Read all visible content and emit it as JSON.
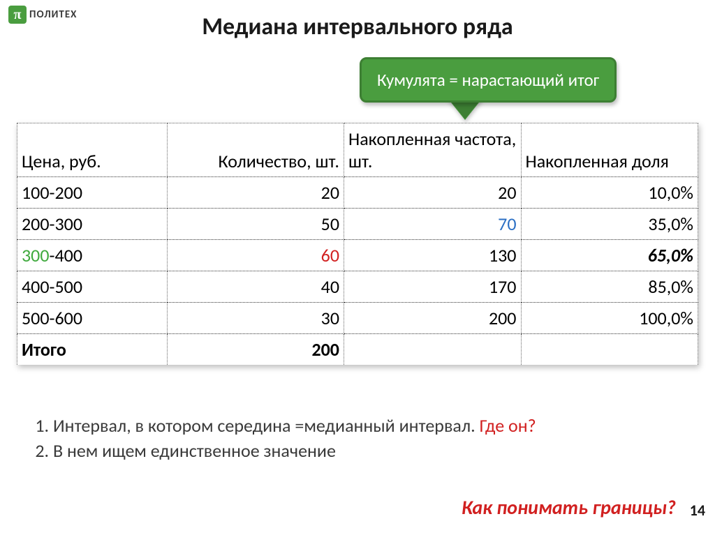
{
  "logo": {
    "icon": "π",
    "text": "ПОЛИТЕХ"
  },
  "title": "Медиана интервального ряда",
  "callout": "Кумулята = нарастающий итог",
  "table": {
    "columns": [
      "Цена, руб.",
      "Количество, шт.",
      "Накопленная частота, шт.",
      "Накопленная доля"
    ],
    "rows": [
      {
        "c1": "100-200",
        "c2": "20",
        "c3": "20",
        "c4": "10,0%"
      },
      {
        "c1": "200-300",
        "c2": "50",
        "c3": "70",
        "c4": "35,0%",
        "c3_class": "blue"
      },
      {
        "c1_pre": "300",
        "c1_suf": "-400",
        "c1_class": "green",
        "c2": "60",
        "c2_class": "red",
        "c3": "130",
        "c4": "65,0%",
        "c4_class": "bolditalic"
      },
      {
        "c1": "400-500",
        "c2": "40",
        "c3": "170",
        "c4": "85,0%"
      },
      {
        "c1": "500-600",
        "c2": "30",
        "c3": "200",
        "c4": "100,0%"
      }
    ],
    "total": {
      "c1": "Итого",
      "c2": "200"
    }
  },
  "notes": {
    "items": [
      {
        "text": "Интервал, в котором середина =медианный интервал. ",
        "emph": "Где он?"
      },
      {
        "text": "В нем ищем единственное значение",
        "emph": ""
      }
    ]
  },
  "footer_q": "Как понимать границы?",
  "page_num": "14"
}
